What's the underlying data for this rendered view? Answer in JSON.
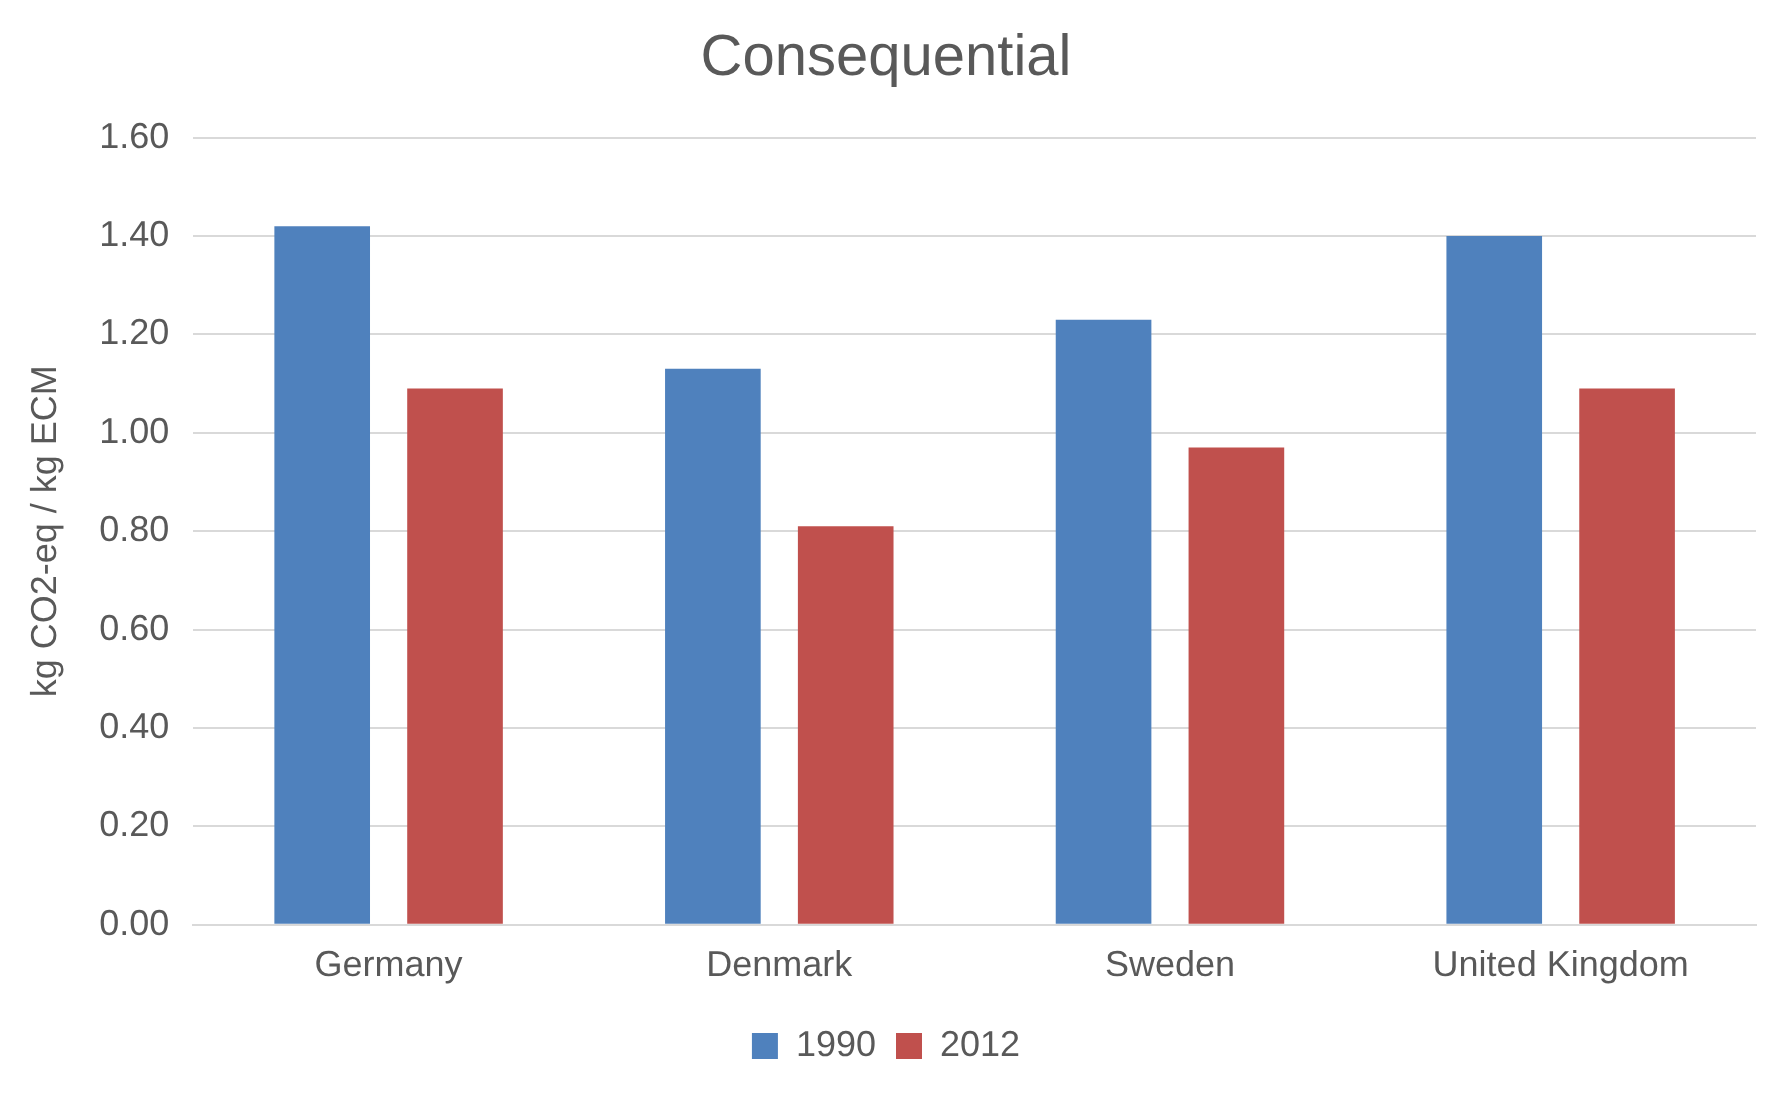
{
  "chart_data": {
    "type": "bar",
    "title": "Consequential",
    "ylabel": "kg CO2-eq / kg ECM",
    "categories": [
      "Germany",
      "Denmark",
      "Sweden",
      "United Kingdom"
    ],
    "series": [
      {
        "name": "1990",
        "color": "#4f81bd",
        "values": [
          1.42,
          1.13,
          1.23,
          1.4
        ]
      },
      {
        "name": "2012",
        "color": "#c0504d",
        "values": [
          1.09,
          0.81,
          0.97,
          1.09
        ]
      }
    ],
    "ylim": [
      0,
      1.6
    ],
    "yticks": [
      {
        "value": 0,
        "label": "0.00"
      },
      {
        "value": 0.2,
        "label": "0.20"
      },
      {
        "value": 0.4,
        "label": "0.40"
      },
      {
        "value": 0.6,
        "label": "0.60"
      },
      {
        "value": 0.8,
        "label": "0.80"
      },
      {
        "value": 1.0,
        "label": "1.00"
      },
      {
        "value": 1.2,
        "label": "1.20"
      },
      {
        "value": 1.4,
        "label": "1.40"
      },
      {
        "value": 1.6,
        "label": "1.60"
      }
    ],
    "grid": "y",
    "legend": "bottom"
  }
}
